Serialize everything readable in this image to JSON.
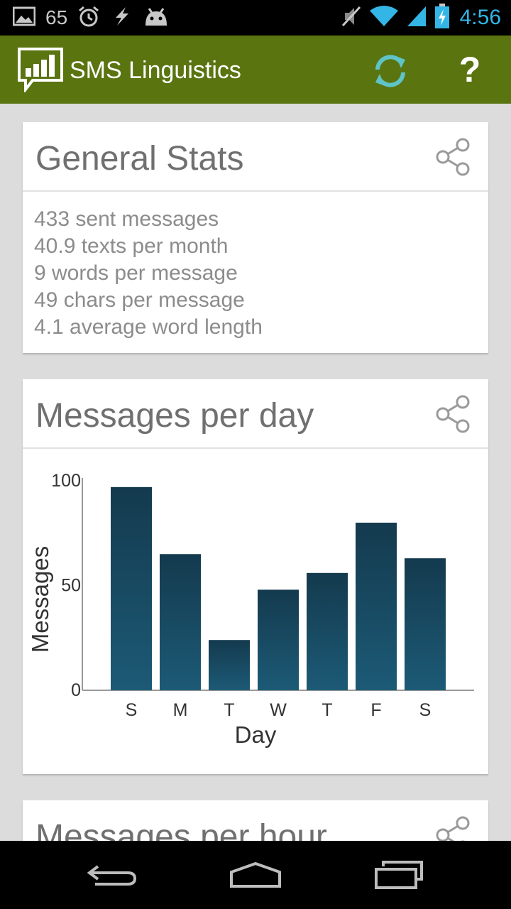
{
  "status_bar": {
    "notification_count": "65",
    "time": "4:56",
    "icons": [
      "image-icon",
      "alarm-icon",
      "usb-debug-icon",
      "android-icon",
      "mute-icon",
      "wifi-icon",
      "signal-icon",
      "battery-charging-icon"
    ]
  },
  "action_bar": {
    "title": "SMS Linguistics",
    "refresh_icon": "refresh-icon",
    "help_label": "?",
    "background": "#5a7410"
  },
  "general_stats": {
    "title": "General Stats",
    "items": [
      "433 sent messages",
      "40.9 texts per month",
      "9 words per message",
      "49 chars per message",
      "4.1 average word length"
    ]
  },
  "messages_per_day": {
    "title": "Messages per day"
  },
  "messages_per_hour": {
    "title": "Messages per hour"
  },
  "chart_data": {
    "type": "bar",
    "categories": [
      "S",
      "M",
      "T",
      "W",
      "T",
      "F",
      "S"
    ],
    "values": [
      97,
      65,
      24,
      48,
      56,
      80,
      63
    ],
    "title": "Messages per day",
    "xlabel": "Day",
    "ylabel": "Messages",
    "ylim": [
      0,
      100
    ],
    "yticks": [
      0,
      50,
      100
    ],
    "bar_color_top": "#143a4e",
    "bar_color_bottom": "#1c5a76",
    "grid": false,
    "legend": "none"
  }
}
